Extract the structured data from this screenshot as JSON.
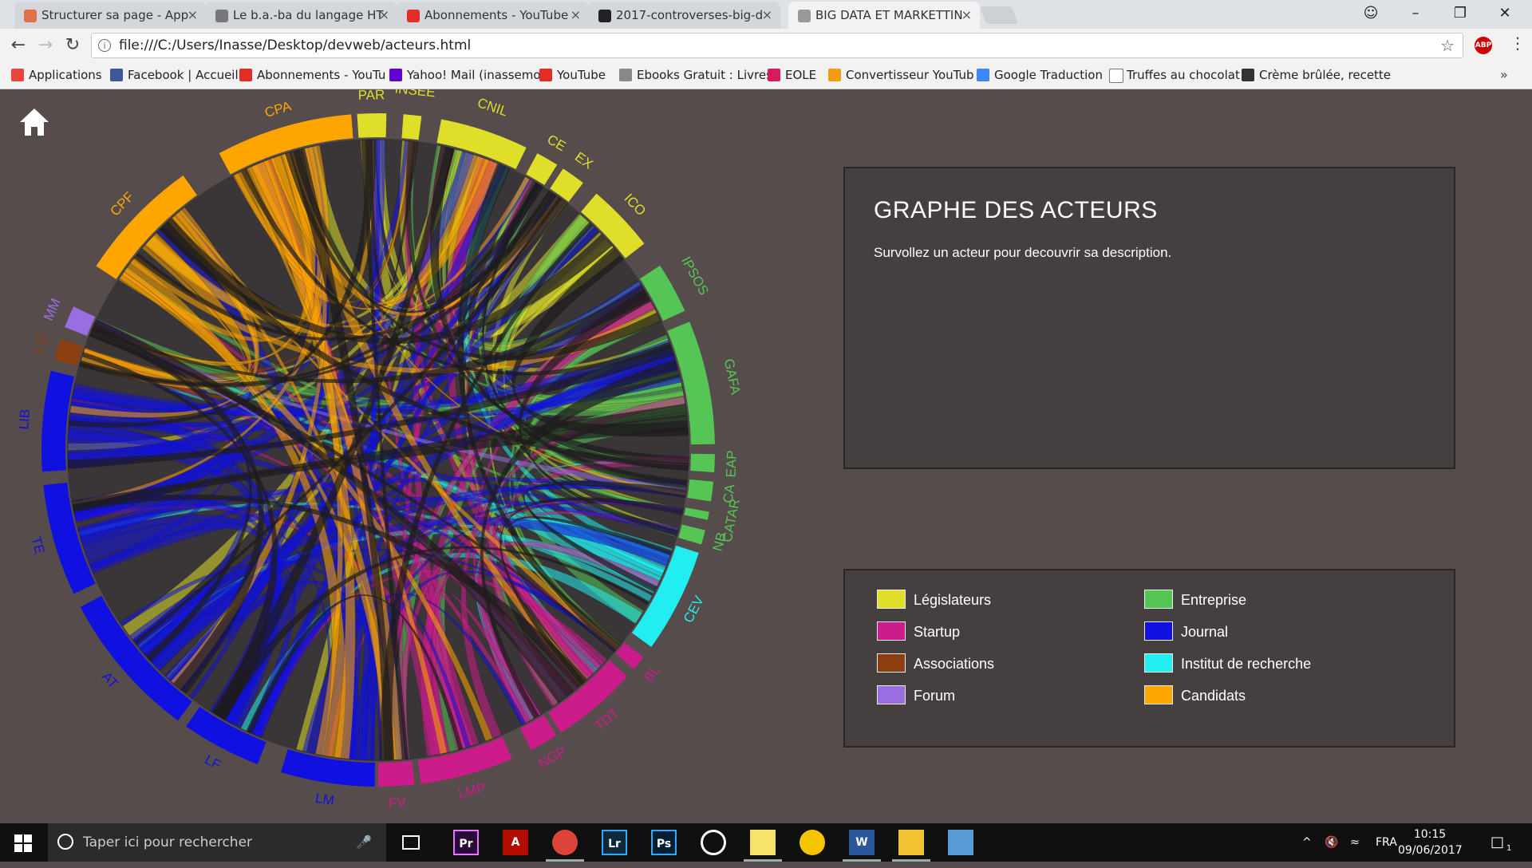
{
  "browser": {
    "tabs": [
      {
        "title": "Structurer sa page - App",
        "favicon_color": "#e0724a",
        "active": false
      },
      {
        "title": "Le b.a.-ba du langage HT",
        "favicon_color": "#777777",
        "active": false
      },
      {
        "title": "Abonnements - YouTube",
        "favicon_color": "#e52d27",
        "active": false
      },
      {
        "title": "2017-controverses-big-d",
        "favicon_color": "#222222",
        "active": false
      },
      {
        "title": "BIG DATA ET MARKETTIN",
        "favicon_color": "#999999",
        "active": true
      }
    ],
    "url": "file:///C:/Users/Inasse/Desktop/devweb/acteurs.html",
    "abp_label": "ABP",
    "bookmarks": [
      {
        "label": "Applications",
        "icon_color": "#e8453c"
      },
      {
        "label": "Facebook | Accueil",
        "icon_color": "#3b5998"
      },
      {
        "label": "Abonnements - YouTu",
        "icon_color": "#e52d27"
      },
      {
        "label": "Yahoo! Mail (inassemo",
        "icon_color": "#5f01d1"
      },
      {
        "label": "YouTube",
        "icon_color": "#e52d27"
      },
      {
        "label": "Ebooks Gratuit : Livres",
        "icon_color": "#888888"
      },
      {
        "label": "EOLE",
        "icon_color": "#d81b60"
      },
      {
        "label": "Convertisseur YouTub",
        "icon_color": "#f39c12"
      },
      {
        "label": "Google Traduction",
        "icon_color": "#4285f4"
      },
      {
        "label": "Truffes au chocolat",
        "icon_color": "#ffffff"
      },
      {
        "label": "Crème brûlée, recette",
        "icon_color": "#333333"
      }
    ]
  },
  "page": {
    "panel_title": "GRAPHE DES ACTEURS",
    "panel_text": "Survollez un acteur pour decouvrir sa description.",
    "legend": [
      {
        "label": "Législateurs",
        "color": "#dfdf2a"
      },
      {
        "label": "Entreprise",
        "color": "#55c655"
      },
      {
        "label": "Startup",
        "color": "#cc1c8c"
      },
      {
        "label": "Journal",
        "color": "#1010e0"
      },
      {
        "label": "Associations",
        "color": "#8b3e10"
      },
      {
        "label": "Institut de recherche",
        "color": "#22eef2"
      },
      {
        "label": "Forum",
        "color": "#9a6ee0"
      },
      {
        "label": "Candidats",
        "color": "#ffa500"
      }
    ],
    "actors": [
      {
        "label": "PAR",
        "category": "Législateurs"
      },
      {
        "label": "INSEE",
        "category": "Législateurs"
      },
      {
        "label": "CNIL",
        "category": "Législateurs"
      },
      {
        "label": "CE",
        "category": "Législateurs"
      },
      {
        "label": "EX",
        "category": "Législateurs"
      },
      {
        "label": "ICO",
        "category": "Législateurs"
      },
      {
        "label": "IPSOS",
        "category": "Entreprise"
      },
      {
        "label": "GAFA",
        "category": "Entreprise"
      },
      {
        "label": "EAP",
        "category": "Entreprise"
      },
      {
        "label": "CA",
        "category": "Entreprise"
      },
      {
        "label": "CATAR",
        "category": "Entreprise"
      },
      {
        "label": "NB",
        "category": "Entreprise"
      },
      {
        "label": "CEV",
        "category": "Institut de recherche"
      },
      {
        "label": "BL",
        "category": "Startup"
      },
      {
        "label": "TDT",
        "category": "Startup"
      },
      {
        "label": "NGP",
        "category": "Startup"
      },
      {
        "label": "LMP",
        "category": "Startup"
      },
      {
        "label": "FV",
        "category": "Startup"
      },
      {
        "label": "LM",
        "category": "Journal"
      },
      {
        "label": "LF",
        "category": "Journal"
      },
      {
        "label": "AT",
        "category": "Journal"
      },
      {
        "label": "TE",
        "category": "Journal"
      },
      {
        "label": "LIB",
        "category": "Journal"
      },
      {
        "label": "LQ",
        "category": "Associations"
      },
      {
        "label": "MM",
        "category": "Forum"
      },
      {
        "label": "CPF",
        "category": "Candidats"
      },
      {
        "label": "CPA",
        "category": "Candidats"
      }
    ]
  },
  "taskbar": {
    "search_placeholder": "Taper ici pour rechercher",
    "apps": [
      {
        "name": "task-view",
        "label": "",
        "color": "#101010"
      },
      {
        "name": "premiere",
        "label": "Pr",
        "color": "#2a0a3a"
      },
      {
        "name": "acrobat",
        "label": "A",
        "color": "#b30b00"
      },
      {
        "name": "chrome",
        "label": "",
        "color": "#db4437"
      },
      {
        "name": "lightroom",
        "label": "Lr",
        "color": "#0c2a3a"
      },
      {
        "name": "photoshop",
        "label": "Ps",
        "color": "#001d34"
      },
      {
        "name": "media",
        "label": "",
        "color": "#101010"
      },
      {
        "name": "sticky-notes",
        "label": "",
        "color": "#f7e26b"
      },
      {
        "name": "norton",
        "label": "",
        "color": "#f5c400"
      },
      {
        "name": "word",
        "label": "W",
        "color": "#2b579a"
      },
      {
        "name": "explorer",
        "label": "",
        "color": "#f1c232"
      },
      {
        "name": "paint",
        "label": "",
        "color": "#5b9bd5"
      }
    ],
    "language": "FRA",
    "time": "10:15",
    "date": "09/06/2017",
    "notif_count": "1"
  }
}
